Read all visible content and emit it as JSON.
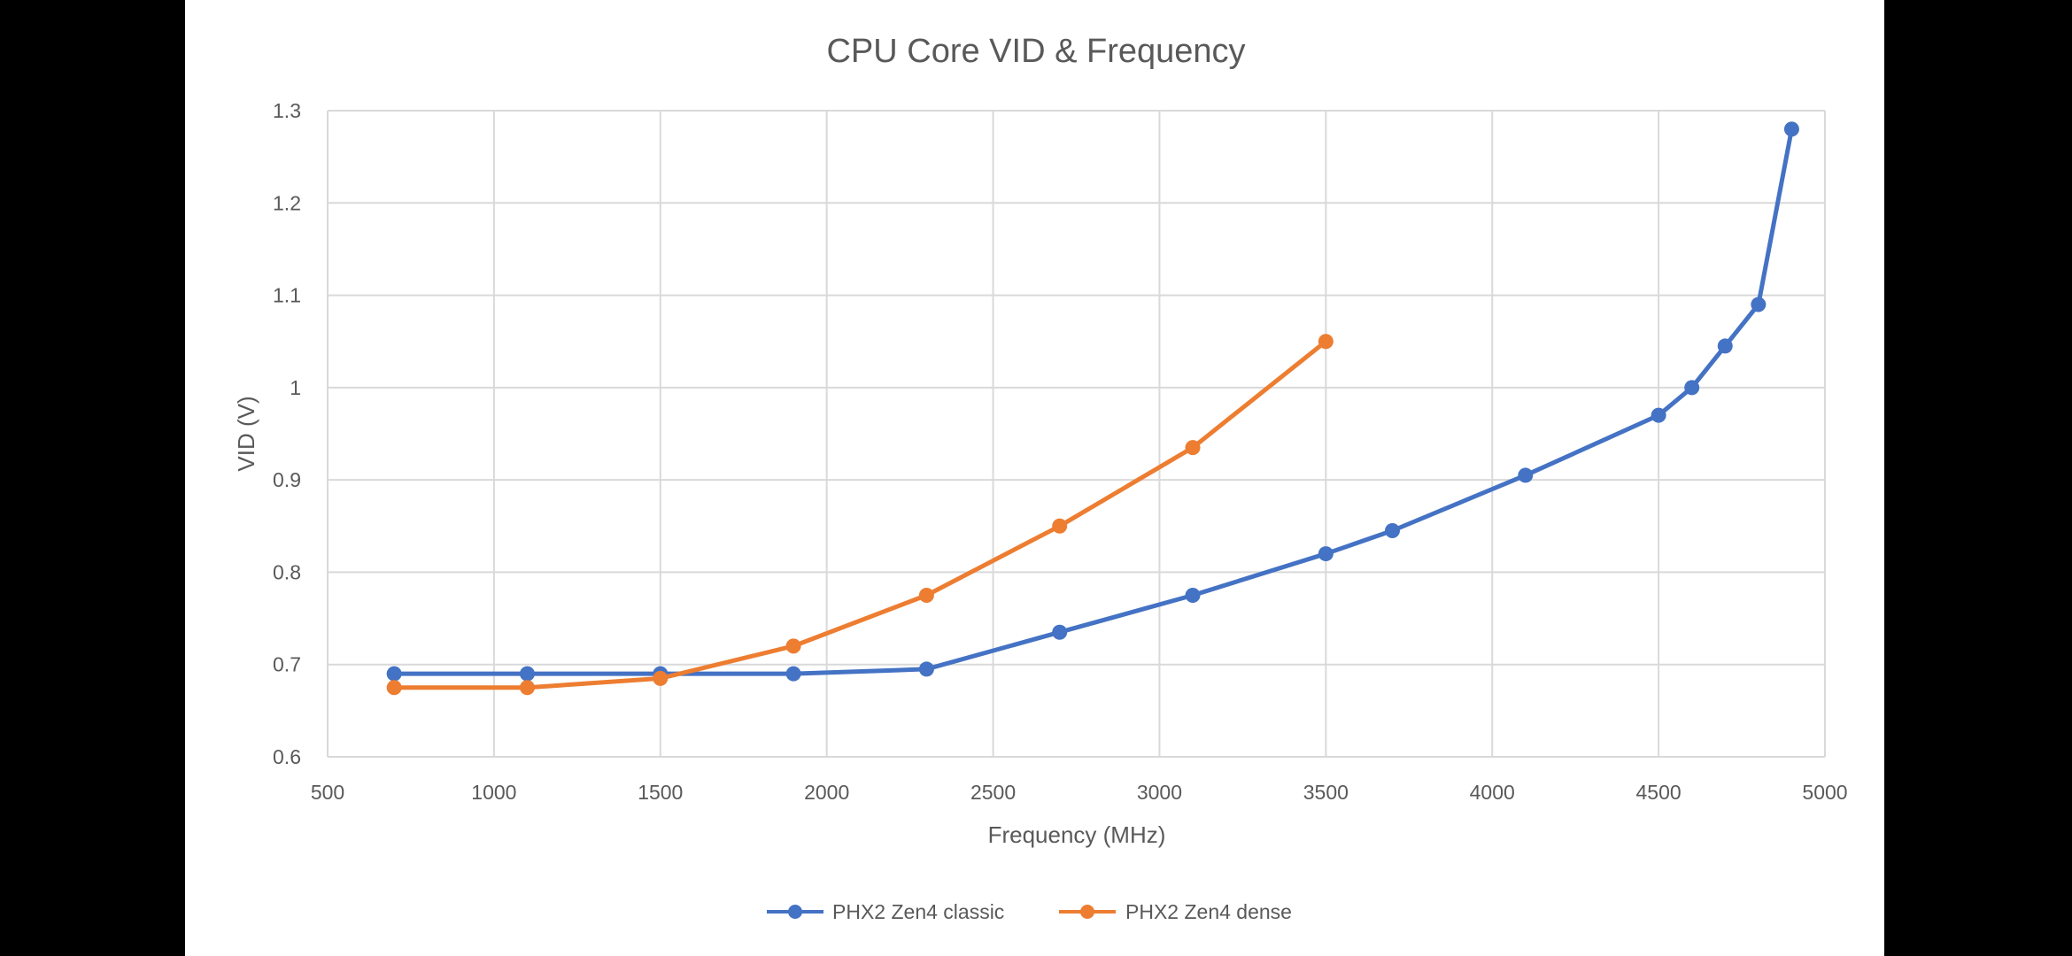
{
  "chart_data": {
    "type": "line",
    "title": "CPU Core VID & Frequency",
    "xlabel": "Frequency (MHz)",
    "ylabel": "VID (V)",
    "xlim": [
      500,
      5000
    ],
    "ylim": [
      0.6,
      1.3
    ],
    "xticks": [
      500,
      1000,
      1500,
      2000,
      2500,
      3000,
      3500,
      4000,
      4500,
      5000
    ],
    "yticks": [
      0.6,
      0.7,
      0.8,
      0.9,
      1,
      1.1,
      1.2,
      1.3
    ],
    "grid": true,
    "legend_position": "bottom",
    "series": [
      {
        "name": "PHX2 Zen4 classic",
        "color": "#4472C4",
        "x": [
          700,
          1100,
          1500,
          1900,
          2300,
          2700,
          3100,
          3500,
          3700,
          4100,
          4500,
          4600,
          4700,
          4800,
          4900
        ],
        "y": [
          0.69,
          0.69,
          0.69,
          0.69,
          0.695,
          0.735,
          0.775,
          0.82,
          0.845,
          0.905,
          0.97,
          1.0,
          1.045,
          1.09,
          1.28
        ]
      },
      {
        "name": "PHX2 Zen4 dense",
        "color": "#ED7D31",
        "x": [
          700,
          1100,
          1500,
          1900,
          2300,
          2700,
          3100,
          3500
        ],
        "y": [
          0.675,
          0.675,
          0.685,
          0.72,
          0.775,
          0.85,
          0.935,
          1.05
        ]
      }
    ]
  }
}
